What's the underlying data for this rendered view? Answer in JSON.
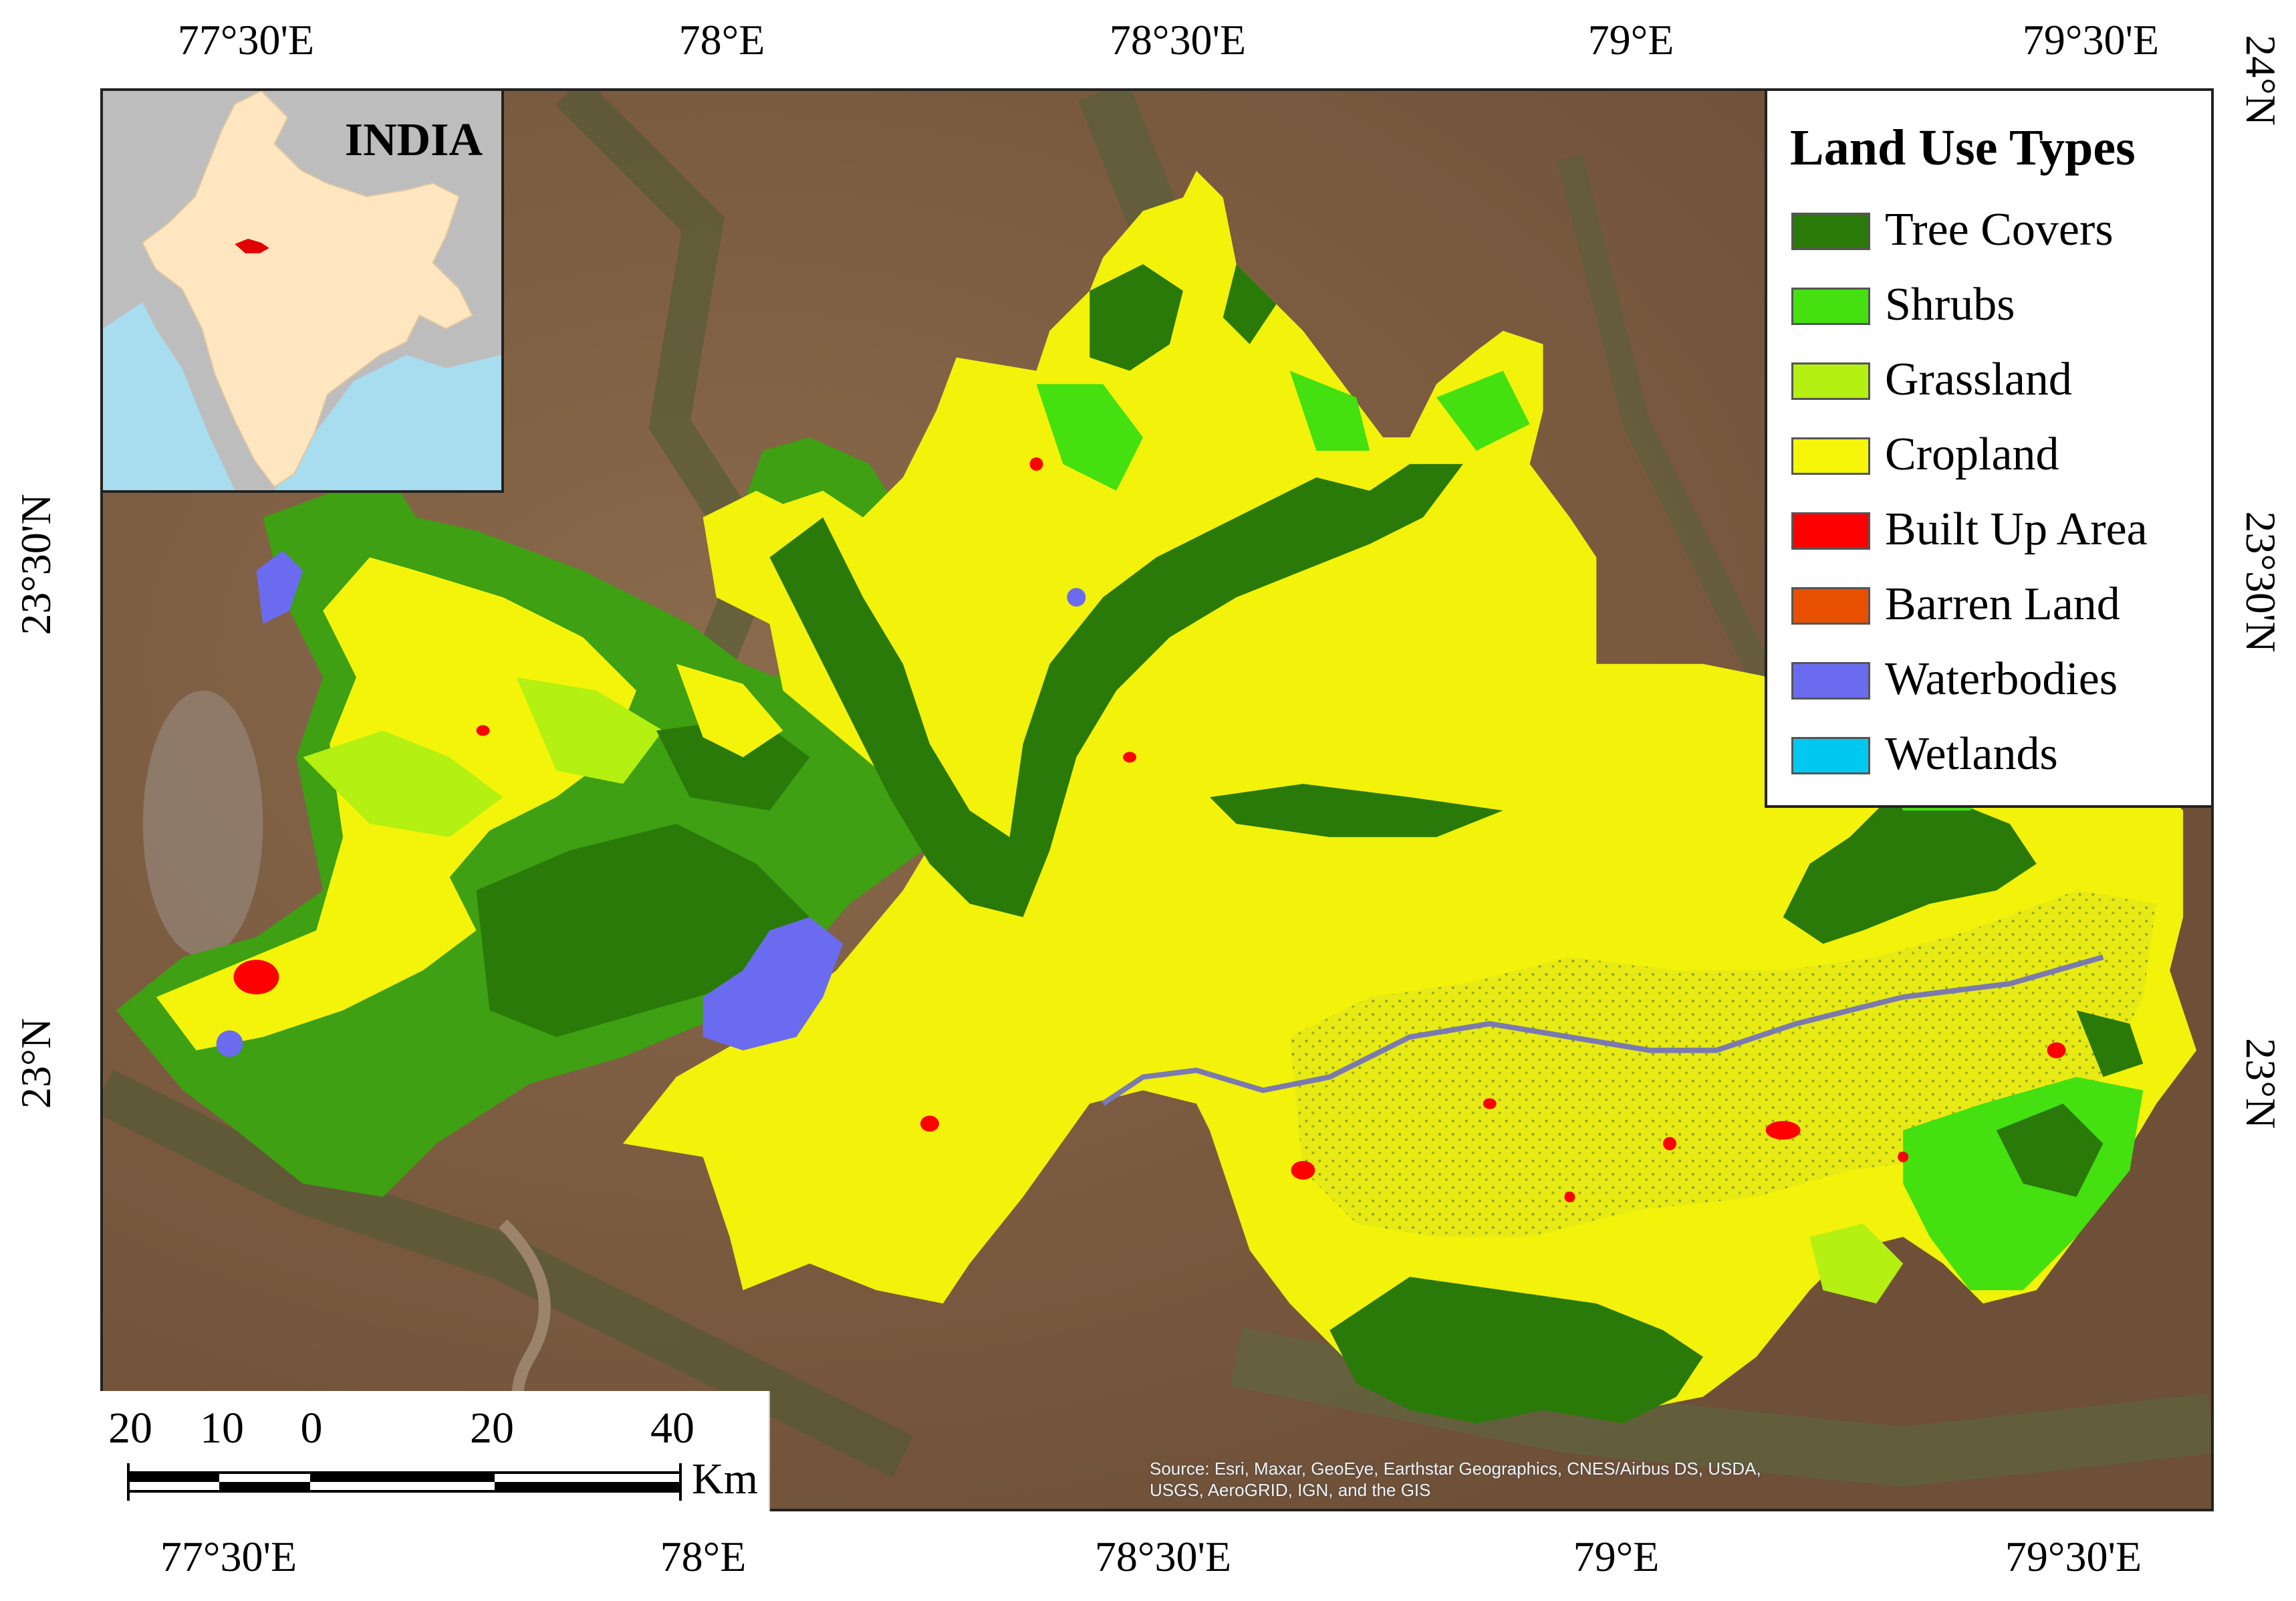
{
  "axes": {
    "top": [
      "77°30'E",
      "78°E",
      "78°30'E",
      "79°E",
      "79°30'E"
    ],
    "bottom": [
      "77°30'E",
      "78°E",
      "78°30'E",
      "79°E",
      "79°30'E"
    ],
    "left": [
      "23°30'N",
      "23°N"
    ],
    "right": [
      "24°N",
      "23°30'N",
      "23°N"
    ]
  },
  "inset": {
    "label": "INDIA"
  },
  "legend": {
    "title": "Land Use Types",
    "items": [
      {
        "label": "Tree Covers",
        "color": "#2a7a0a"
      },
      {
        "label": "Shrubs",
        "color": "#44e010"
      },
      {
        "label": "Grassland",
        "color": "#b4f012"
      },
      {
        "label": "Cropland",
        "color": "#f6f60a"
      },
      {
        "label": "Built Up Area",
        "color": "#ff0000"
      },
      {
        "label": "Barren Land",
        "color": "#e85000"
      },
      {
        "label": "Waterbodies",
        "color": "#6b6bf0"
      },
      {
        "label": "Wetlands",
        "color": "#00c8f0"
      }
    ]
  },
  "scalebar": {
    "ticks": [
      "20",
      "10",
      "0",
      "20",
      "40"
    ],
    "unit": "Km"
  },
  "attribution": "Source: Esri, Maxar, GeoEye, Earthstar Geographics, CNES/Airbus DS, USDA, USGS, AeroGRID, IGN, and the GIS"
}
